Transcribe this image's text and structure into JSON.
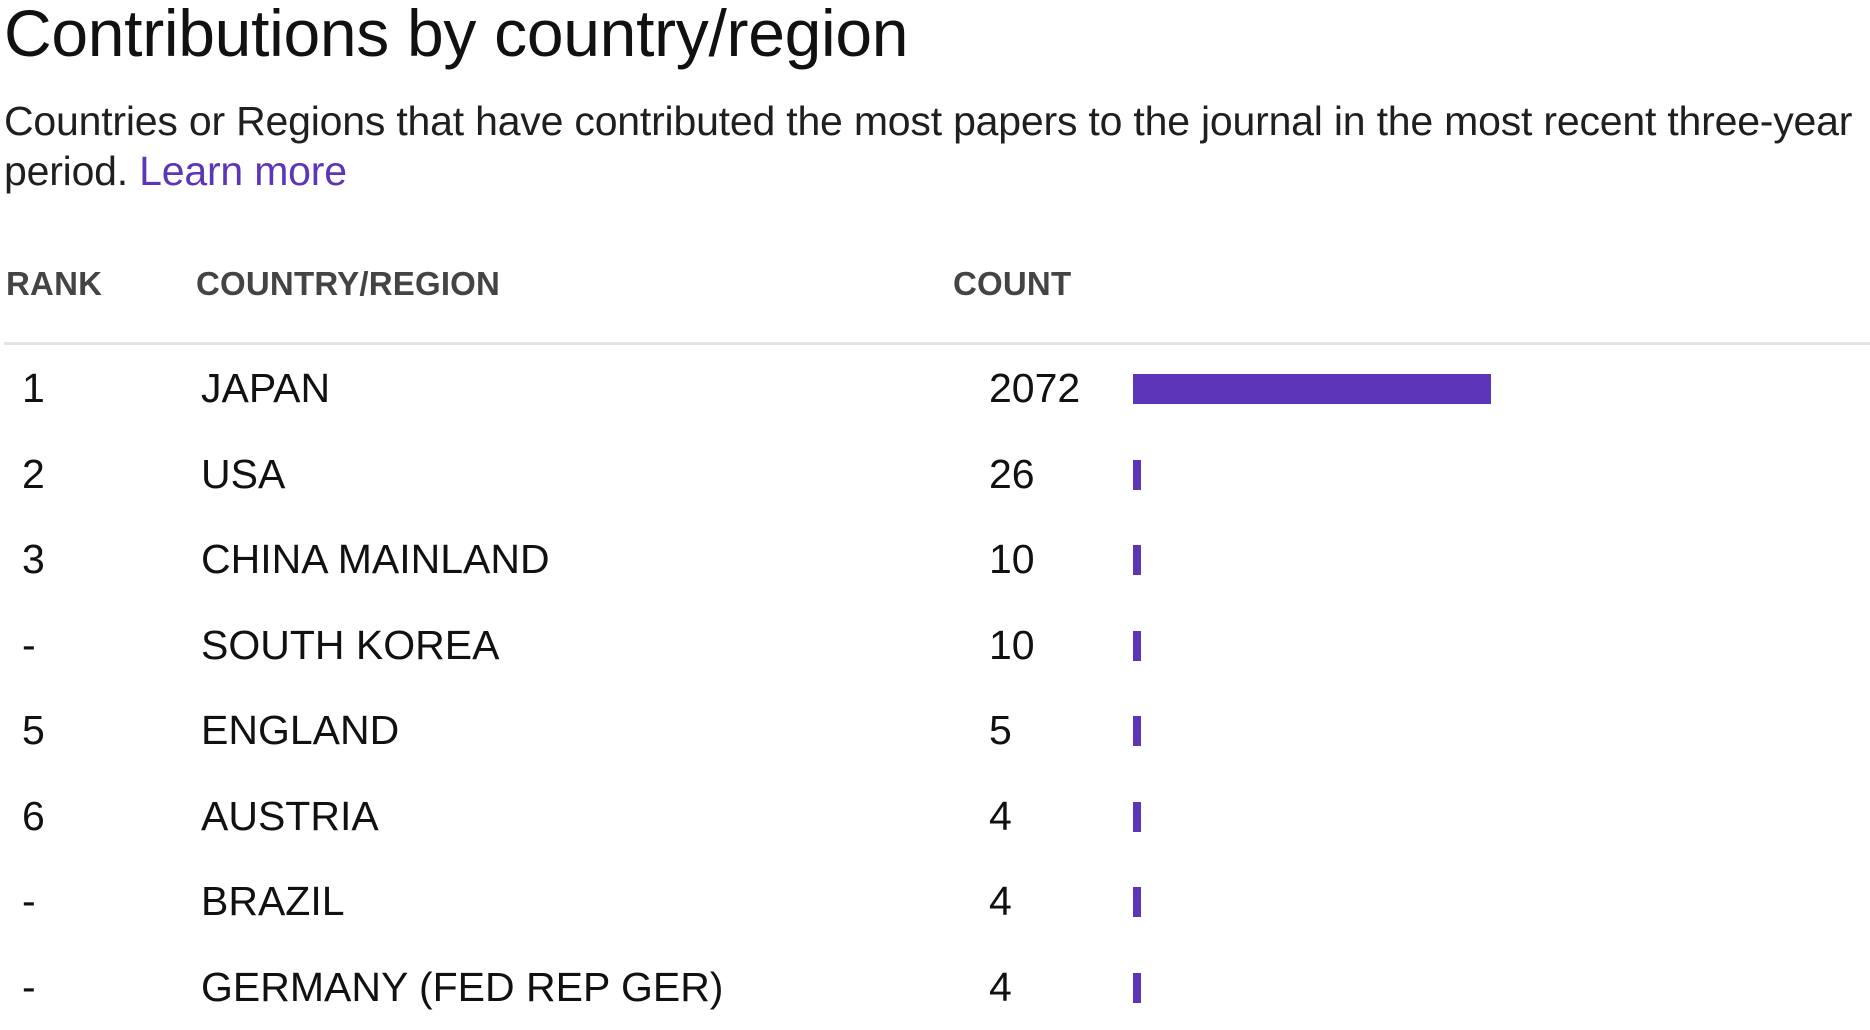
{
  "header": {
    "title": "Contributions by country/region",
    "description": "Countries or Regions that have contributed the most papers to the journal in the most recent three-year period.",
    "learn_more": "Learn more"
  },
  "table": {
    "columns": {
      "rank": "RANK",
      "country": "COUNTRY/REGION",
      "count": "COUNT"
    }
  },
  "colors": {
    "accent": "#5c35b9",
    "divider": "#e4e4e4",
    "header_text": "#444444"
  },
  "chart_data": {
    "type": "bar",
    "orientation": "horizontal",
    "categories": [
      "JAPAN",
      "USA",
      "CHINA MAINLAND",
      "SOUTH KOREA",
      "ENGLAND",
      "AUSTRIA",
      "BRAZIL",
      "GERMANY (FED REP GER)"
    ],
    "ranks": [
      "1",
      "2",
      "3",
      "-",
      "5",
      "6",
      "-",
      "-"
    ],
    "values": [
      2072,
      26,
      10,
      10,
      5,
      4,
      4,
      4
    ],
    "xlim": [
      0,
      2072
    ],
    "bar_color": "#5c35b9",
    "grid": false
  }
}
